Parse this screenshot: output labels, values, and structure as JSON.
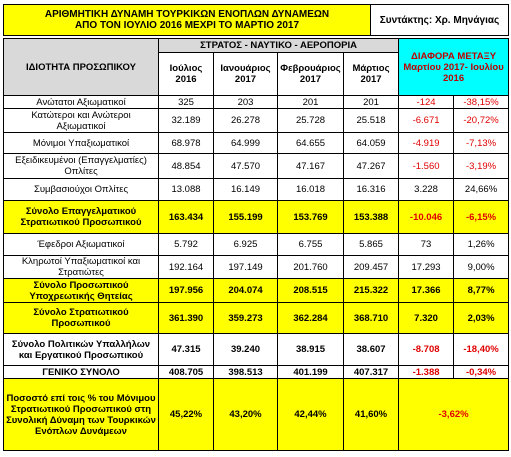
{
  "header": {
    "title": [
      "ΑΡΙΘΜΗΤΙΚΗ ΔΥΝΑΜΗ ΤΟΥΡΚΙΚΩΝ ΕΝΟΠΛΩΝ ΔΥΝΑΜΕΩΝ",
      "ΑΠΟ ΤΟΝ ΙΟΥΛΙΟ 2016 ΜΕΧΡΙ ΤΟ ΜΑΡΤΙΟ 2017"
    ],
    "author": "Συντάκτης: Χρ. Μηνάγιας"
  },
  "table": {
    "label_header": "ΙΔΙΟΤΗΤΑ ΠΡΟΣΩΠΙΚΟΥ",
    "group_header": "ΣΤΡΑΤΟΣ - ΝΑΥΤΙΚΟ - ΑΕΡΟΠΟΡΙΑ",
    "columns": [
      "Ιούλιος 2016",
      "Ιανουάριος 2017",
      "Φεβρουάριος 2017",
      "Μάρτιος 2017"
    ],
    "difference_header": "ΔΙΑΦΟΡΑ ΜΕΤΑΞΥ Μαρτίου 2017- Ιουλίου 2016",
    "rows": [
      {
        "label": "Ανώτατοι Αξιωματικοί",
        "values": [
          "325",
          "203",
          "201",
          "201",
          "-124",
          "-38,15%"
        ]
      },
      {
        "label": "Κατώτεροι και Ανώτεροι Αξιωματικοί",
        "values": [
          "32.189",
          "26.278",
          "25.728",
          "25.518",
          "-6.671",
          "-20,72%"
        ]
      },
      {
        "label": "Μόνιμοι Υπαξιωματικοί",
        "values": [
          "68.978",
          "64.999",
          "64.655",
          "64.059",
          "-4.919",
          "-7,13%"
        ]
      },
      {
        "label": "Εξειδικευμένοι (Επαγγελματίες) Οπλίτες",
        "values": [
          "48.854",
          "47.570",
          "47.167",
          "47.267",
          "-1.560",
          "-3,19%"
        ]
      },
      {
        "label": "Συμβασιούχοι Οπλίτες",
        "values": [
          "13.088",
          "16.149",
          "16.018",
          "16.316",
          "3.228",
          "24,66%"
        ]
      },
      {
        "label": "Σύνολο Επαγγελματικού Στρατιωτικού Προσωπικού",
        "values": [
          "163.434",
          "155.199",
          "153.769",
          "153.388",
          "-10.046",
          "-6,15%"
        ],
        "fill": "#ffff00",
        "bold": true
      },
      {
        "label": "Έφεδροι Αξιωματικοί",
        "values": [
          "5.792",
          "6.925",
          "6.755",
          "5.865",
          "73",
          "1,26%"
        ]
      },
      {
        "label": "Κληρωτοί Υπαξιωματικοί και Στρατιώτες",
        "values": [
          "192.164",
          "197.149",
          "201.760",
          "209.457",
          "17.293",
          "9,00%"
        ]
      },
      {
        "label": "Σύνολο Προσωπικού Υποχρεωτικής Θητείας",
        "values": [
          "197.956",
          "204.074",
          "208.515",
          "215.322",
          "17.366",
          "8,77%"
        ],
        "fill": "#ffff00",
        "bold": true
      },
      {
        "label": "Σύνολο Στρατιωτικού Προσωπικού",
        "values": [
          "361.390",
          "359.273",
          "362.284",
          "368.710",
          "7.320",
          "2,03%"
        ],
        "fill": "#ffff00",
        "bold": true
      },
      {
        "label": "Σύνολο Πολιτικών Υπαλλήλων και Εργατικού Προσωπικού",
        "values": [
          "47.315",
          "39.240",
          "38.915",
          "38.607",
          "-8.708",
          "-18,40%"
        ],
        "bold": true
      },
      {
        "label": "ΓΕΝΙΚΟ ΣΥΝΟΛΟ",
        "values": [
          "408.705",
          "398.513",
          "401.199",
          "407.317",
          "-1.388",
          "-0,34%"
        ],
        "bold": true
      },
      {
        "label": "Ποσοστό επί τοις % του Μόνιμου Στρατιωτικού Προσωπικού στη Συνολική Δύναμη των Τουρκικών Ενόπλων Δυνάμεων",
        "values": [
          "45,22%",
          "43,20%",
          "42,44%",
          "41,60%",
          "-3,62%"
        ],
        "fill": "#ffff00",
        "bold": true
      }
    ]
  }
}
